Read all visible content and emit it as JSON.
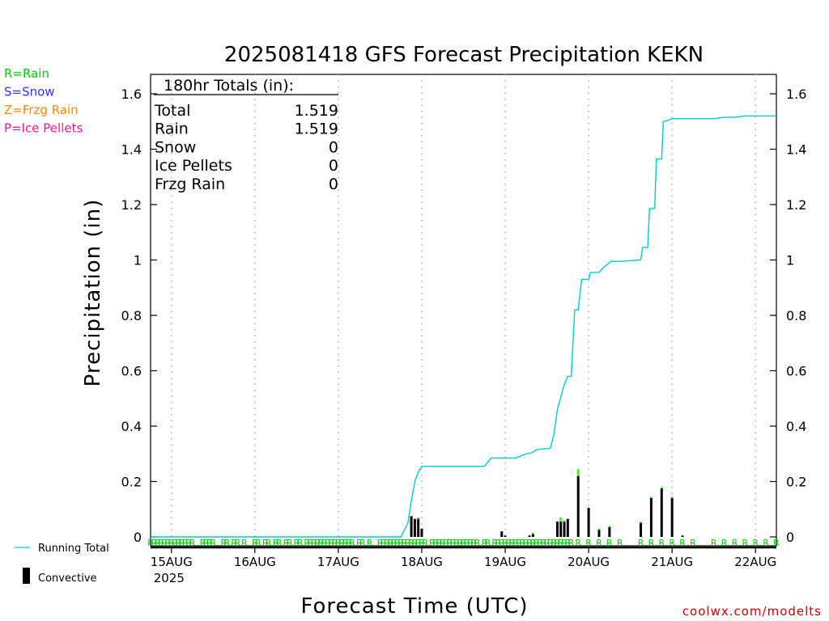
{
  "chart_data": {
    "type": "bar",
    "title": "2025081418 GFS Forecast Precipitation KEKN",
    "xlabel": "Forecast Time (UTC)",
    "ylabel": "Precipitation  (in)",
    "ylim": [
      0,
      1.65
    ],
    "y_ticks": [
      "0",
      "0.2",
      "0.4",
      "0.6",
      "0.8",
      "1",
      "1.2",
      "1.4",
      "1.6"
    ],
    "y_tick_values": [
      0,
      0.2,
      0.4,
      0.6,
      0.8,
      1.0,
      1.2,
      1.4,
      1.6
    ],
    "x_ticks": [
      "15AUG",
      "16AUG",
      "17AUG",
      "18AUG",
      "19AUG",
      "20AUG",
      "21AUG",
      "22AUG"
    ],
    "x_tick_hours": [
      6,
      30,
      54,
      78,
      102,
      126,
      150,
      174
    ],
    "x_year": "2025",
    "xlim_hours": [
      0,
      180
    ],
    "grid": "vertical dotted at day boundaries",
    "legend": {
      "ptype": [
        {
          "code": "R=Rain",
          "color": "#00cc00"
        },
        {
          "code": "S=Snow",
          "color": "#3333ff"
        },
        {
          "code": "Z=Frzg Rain",
          "color": "#ff8800"
        },
        {
          "code": "P=Ice Pellets",
          "color": "#ff1493"
        }
      ],
      "running_total": "Running Total",
      "convective": "Convective"
    },
    "totals": {
      "header": "180hr Totals (in):",
      "rows": [
        {
          "label": "Total",
          "value": "1.519"
        },
        {
          "label": "Rain",
          "value": "1.519"
        },
        {
          "label": "Snow",
          "value": "0"
        },
        {
          "label": "Ice Pellets",
          "value": "0"
        },
        {
          "label": "Frzg Rain",
          "value": "0"
        }
      ]
    },
    "series": [
      {
        "name": "Running Total",
        "color": "#00cccc",
        "hours": [
          0,
          72,
          74,
          75,
          76,
          77,
          78,
          96,
          97,
          98,
          100,
          102,
          105,
          108,
          110,
          111,
          115,
          116,
          117,
          119,
          120,
          121,
          122,
          123,
          124,
          125,
          126,
          126.5,
          129,
          130,
          132,
          132.5,
          135,
          135.5,
          141,
          141.5,
          143,
          143.5,
          145,
          145.5,
          147,
          147.5,
          149,
          150,
          152,
          159,
          162,
          165,
          168,
          171,
          174,
          180
        ],
        "values": [
          0,
          0,
          0.05,
          0.13,
          0.2,
          0.235,
          0.255,
          0.255,
          0.27,
          0.285,
          0.285,
          0.285,
          0.285,
          0.3,
          0.305,
          0.315,
          0.32,
          0.37,
          0.46,
          0.55,
          0.58,
          0.58,
          0.82,
          0.82,
          0.93,
          0.93,
          0.93,
          0.955,
          0.955,
          0.97,
          0.99,
          0.995,
          0.995,
          0.995,
          1.0,
          1.045,
          1.045,
          1.185,
          1.185,
          1.365,
          1.365,
          1.5,
          1.505,
          1.51,
          1.51,
          1.51,
          1.51,
          1.515,
          1.515,
          1.52,
          1.52,
          1.52
        ]
      },
      {
        "name": "Precipitation",
        "type": "bar",
        "hours": [
          75,
          76,
          77,
          78,
          101,
          102,
          109,
          110,
          117,
          118,
          119,
          120,
          123,
          126,
          129,
          132,
          141,
          144,
          147,
          150,
          153
        ],
        "values": [
          0.075,
          0.065,
          0.07,
          0.03,
          0.02,
          0.005,
          0.005,
          0.015,
          0.055,
          0.07,
          0.06,
          0.065,
          0.245,
          0.105,
          0.03,
          0.04,
          0.055,
          0.145,
          0.18,
          0.145,
          0.005
        ],
        "convective": [
          0.075,
          0.065,
          0.065,
          0.03,
          0.02,
          0.005,
          0.005,
          0.01,
          0.055,
          0.055,
          0.055,
          0.065,
          0.22,
          0.105,
          0.025,
          0.035,
          0.05,
          0.14,
          0.175,
          0.14,
          0.005
        ]
      }
    ],
    "ptype_marks": {
      "label": "R",
      "color": "#00cc00",
      "hours": [
        0,
        1,
        2,
        3,
        4,
        5,
        6,
        7,
        8,
        9,
        10,
        11,
        12,
        15,
        16,
        17,
        18,
        21,
        22,
        24,
        25,
        27,
        30,
        31,
        33,
        34,
        36,
        37,
        39,
        40,
        42,
        43,
        45,
        46,
        47,
        48,
        49,
        50,
        51,
        52,
        53,
        54,
        55,
        56,
        57,
        58,
        60,
        61,
        63,
        66,
        67,
        68,
        69,
        70,
        71,
        72,
        73,
        74,
        75,
        76,
        77,
        78,
        79,
        81,
        82,
        83,
        84,
        85,
        86,
        87,
        88,
        89,
        90,
        91,
        92,
        93,
        94,
        96,
        97,
        99,
        100,
        101,
        102,
        103,
        104,
        105,
        106,
        107,
        108,
        109,
        110,
        111,
        112,
        113,
        114,
        115,
        116,
        117,
        118,
        119,
        120,
        121,
        123,
        126,
        129,
        132,
        135,
        141,
        144,
        147,
        150,
        153,
        156,
        162,
        165,
        168,
        171,
        174,
        177,
        180
      ]
    }
  },
  "credit": "coolwx.com/modelts",
  "colors": {
    "running_total": "#00cccc",
    "bar": "#000000",
    "bar_top": "#33ff33",
    "grid": "#aaaaaa",
    "credit": "#cc0000"
  }
}
